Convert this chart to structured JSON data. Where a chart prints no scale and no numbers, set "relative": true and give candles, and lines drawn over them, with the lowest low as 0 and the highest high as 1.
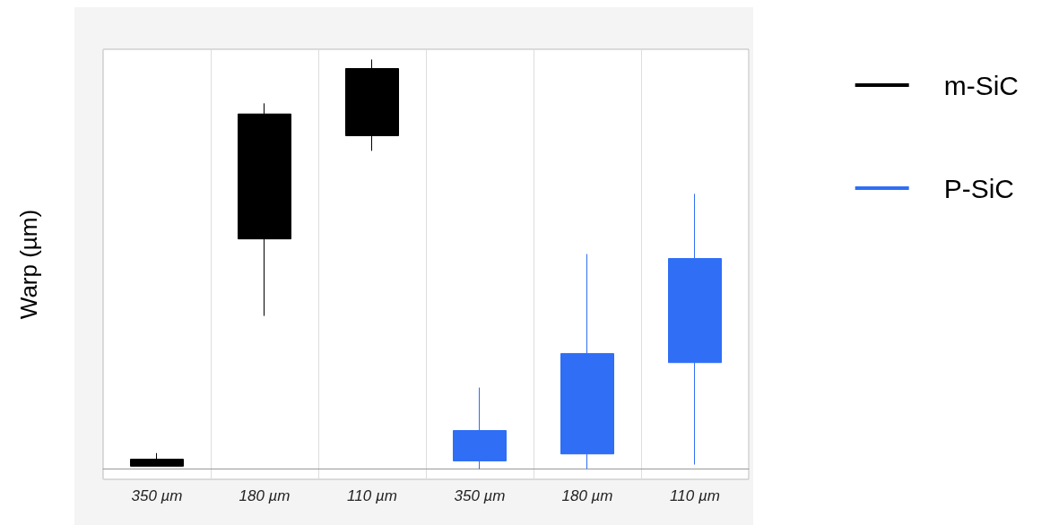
{
  "chart_data": {
    "type": "candlestick",
    "relative": true,
    "ylabel": "Warp (µm)",
    "categories": [
      "350 µm",
      "180 µm",
      "110 µm",
      "350 µm",
      "180 µm",
      "110 µm"
    ],
    "grid": "x",
    "legend": "right",
    "series": [
      {
        "name": "m-SiC",
        "color": "#000000",
        "ohlc": [
          [
            0.007,
            0.039,
            0.007,
            0.024
          ],
          [
            0.562,
            0.893,
            0.374,
            0.867
          ],
          [
            0.814,
            1,
            0.777,
            0.978
          ],
          null,
          null,
          null
        ]
      },
      {
        "name": "P-SiC",
        "color": "#2f6ef5",
        "ohlc": [
          null,
          null,
          null,
          [
            0.02,
            0.199,
            0,
            0.094
          ],
          [
            0.037,
            0.525,
            0,
            0.282
          ],
          [
            0.26,
            0.672,
            0.011,
            0.514
          ]
        ]
      }
    ]
  }
}
